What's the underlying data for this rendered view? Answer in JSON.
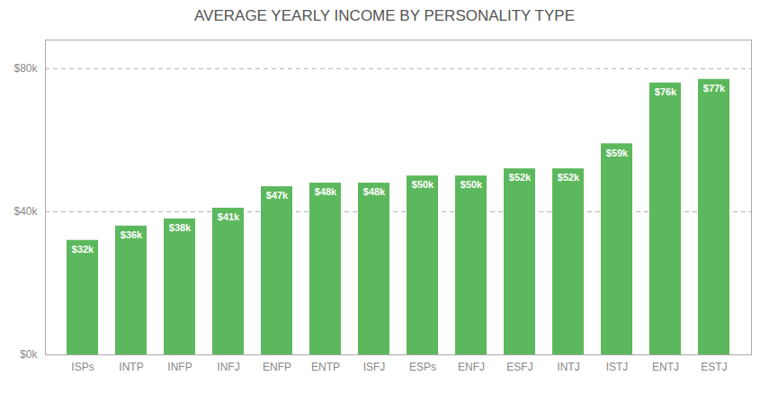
{
  "chart_data": {
    "type": "bar",
    "title": "AVERAGE YEARLY INCOME BY PERSONALITY TYPE",
    "categories": [
      "ISPs",
      "INTP",
      "INFP",
      "INFJ",
      "ENFP",
      "ENTP",
      "ISFJ",
      "ESPs",
      "ENFJ",
      "ESFJ",
      "INTJ",
      "ISTJ",
      "ENTJ",
      "ESTJ"
    ],
    "values": [
      32000,
      36000,
      38000,
      41000,
      47000,
      48000,
      48000,
      50000,
      50000,
      52000,
      52000,
      59000,
      76000,
      77000
    ],
    "value_labels": [
      "$32k",
      "$36k",
      "$38k",
      "$41k",
      "$47k",
      "$48k",
      "$48k",
      "$50k",
      "$50k",
      "$52k",
      "$52k",
      "$59k",
      "$76k",
      "$77k"
    ],
    "data_labels": true,
    "color": "#5cb85c",
    "ylim": [
      0,
      88000
    ],
    "yticks": [
      {
        "value": 0,
        "label": "$0k"
      },
      {
        "value": 40000,
        "label": "$40k"
      },
      {
        "value": 80000,
        "label": "$80k"
      }
    ],
    "grid": true
  }
}
